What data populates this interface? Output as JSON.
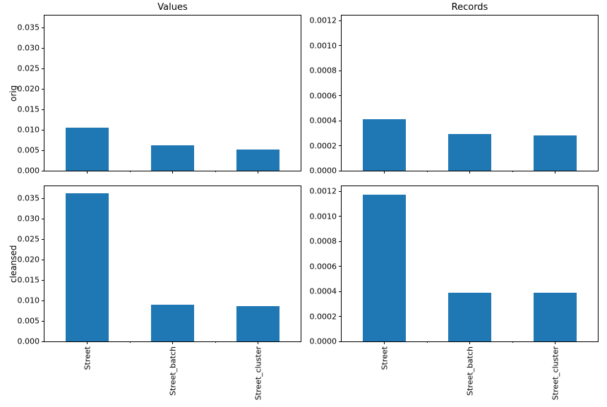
{
  "figure": {
    "background": "#ffffff",
    "bar_color": "#1f77b4",
    "axis_color": "#000000",
    "text_color": "#000000"
  },
  "chart_data": [
    {
      "type": "bar",
      "title": "Values",
      "ylabel": "orig",
      "categories": [
        "Street",
        "Street_batch",
        "Street_cluster"
      ],
      "values": [
        0.0106,
        0.0062,
        0.0051
      ],
      "ylim": [
        0,
        0.038
      ],
      "yticks": [
        0.0,
        0.005,
        0.01,
        0.015,
        0.02,
        0.025,
        0.03,
        0.035
      ],
      "ytick_labels": [
        "0.000",
        "0.005",
        "0.010",
        "0.015",
        "0.020",
        "0.025",
        "0.030",
        "0.035"
      ],
      "show_xticklabels": false,
      "grid": false,
      "legend": null
    },
    {
      "type": "bar",
      "title": "Records",
      "ylabel": "",
      "categories": [
        "Street",
        "Street_batch",
        "Street_cluster"
      ],
      "values": [
        0.00041,
        0.000295,
        0.00028
      ],
      "ylim": [
        0,
        0.00124
      ],
      "yticks": [
        0.0,
        0.0002,
        0.0004,
        0.0006,
        0.0008,
        0.001,
        0.0012
      ],
      "ytick_labels": [
        "0.0000",
        "0.0002",
        "0.0004",
        "0.0006",
        "0.0008",
        "0.0010",
        "0.0012"
      ],
      "show_xticklabels": false,
      "grid": false,
      "legend": null
    },
    {
      "type": "bar",
      "title": "",
      "ylabel": "cleansed",
      "categories": [
        "Street",
        "Street_batch",
        "Street_cluster"
      ],
      "values": [
        0.0362,
        0.0089,
        0.0087
      ],
      "ylim": [
        0,
        0.038
      ],
      "yticks": [
        0.0,
        0.005,
        0.01,
        0.015,
        0.02,
        0.025,
        0.03,
        0.035
      ],
      "ytick_labels": [
        "0.000",
        "0.005",
        "0.010",
        "0.015",
        "0.020",
        "0.025",
        "0.030",
        "0.035"
      ],
      "show_xticklabels": true,
      "grid": false,
      "legend": null
    },
    {
      "type": "bar",
      "title": "",
      "ylabel": "",
      "categories": [
        "Street",
        "Street_batch",
        "Street_cluster"
      ],
      "values": [
        0.00117,
        0.00039,
        0.00039
      ],
      "ylim": [
        0,
        0.00124
      ],
      "yticks": [
        0.0,
        0.0002,
        0.0004,
        0.0006,
        0.0008,
        0.001,
        0.0012
      ],
      "ytick_labels": [
        "0.0000",
        "0.0002",
        "0.0004",
        "0.0006",
        "0.0008",
        "0.0010",
        "0.0012"
      ],
      "show_xticklabels": true,
      "grid": false,
      "legend": null
    }
  ]
}
